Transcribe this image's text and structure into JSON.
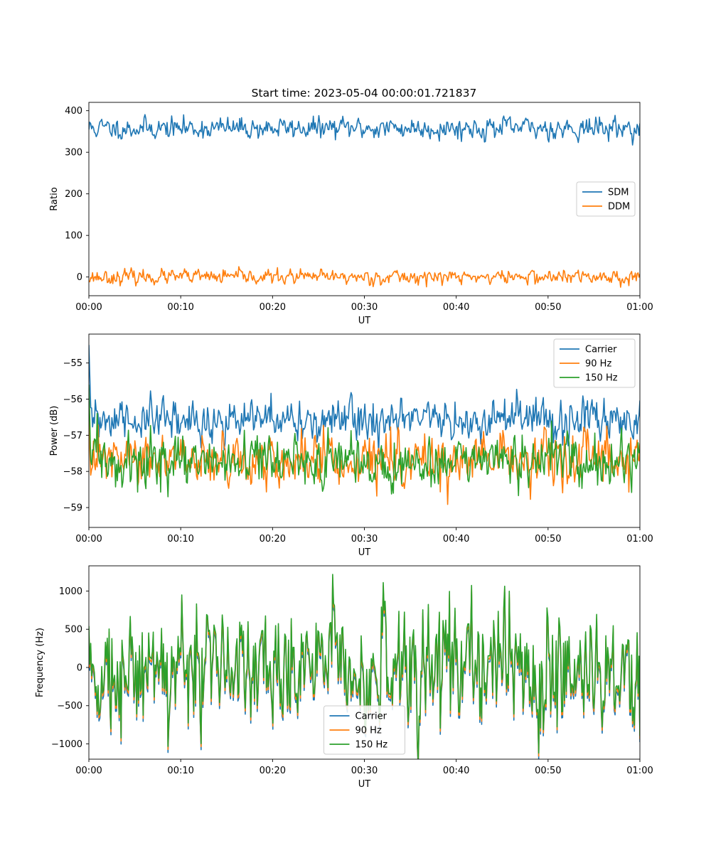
{
  "title": "Start time: 2023-05-04 00:00:01.721837",
  "chart_data": [
    {
      "type": "line",
      "xlabel": "UT",
      "ylabel": "Ratio",
      "x_ticks": [
        "00:00",
        "00:10",
        "00:20",
        "00:30",
        "00:40",
        "00:50",
        "01:00"
      ],
      "xlim": [
        0,
        60
      ],
      "ylim": [
        -45,
        420
      ],
      "y_ticks": [
        0,
        100,
        200,
        300,
        400
      ],
      "legend_position": "center-right",
      "samples": 600,
      "series": [
        {
          "name": "SDM",
          "color": "#1f77b4",
          "mean": 358,
          "spread": 12,
          "seed": 11
        },
        {
          "name": "DDM",
          "color": "#ff7f0e",
          "mean": 0,
          "spread": 8,
          "seed": 23
        }
      ]
    },
    {
      "type": "line",
      "xlabel": "UT",
      "ylabel": "Power (dB)",
      "x_ticks": [
        "00:00",
        "00:10",
        "00:20",
        "00:30",
        "00:40",
        "00:50",
        "01:00"
      ],
      "xlim": [
        0,
        60
      ],
      "ylim": [
        -59.55,
        -54.2
      ],
      "y_ticks": [
        -59,
        -58,
        -57,
        -56,
        -55
      ],
      "legend_position": "top-right",
      "samples": 600,
      "series": [
        {
          "name": "Carrier",
          "color": "#1f77b4",
          "mean": -56.6,
          "spread": 0.28,
          "seed": 31,
          "start": -54.5
        },
        {
          "name": "90 Hz",
          "color": "#ff7f0e",
          "mean": -57.7,
          "spread": 0.33,
          "seed": 47,
          "start": -55.8
        },
        {
          "name": "150 Hz",
          "color": "#2ca02c",
          "mean": -57.75,
          "spread": 0.33,
          "seed": 59,
          "start": -55.6
        }
      ]
    },
    {
      "type": "line",
      "xlabel": "UT",
      "ylabel": "Frequency (Hz)",
      "x_ticks": [
        "00:00",
        "00:10",
        "00:20",
        "00:30",
        "00:40",
        "00:50",
        "01:00"
      ],
      "xlim": [
        0,
        60
      ],
      "ylim": [
        -1200,
        1330
      ],
      "y_ticks": [
        -1000,
        -500,
        0,
        500,
        1000
      ],
      "legend_position": "bottom-center",
      "samples": 600,
      "series": [
        {
          "name": "Carrier",
          "color": "#1f77b4",
          "mean": 0,
          "spread": 380,
          "seed": 73,
          "offset": -40
        },
        {
          "name": "90 Hz",
          "color": "#ff7f0e",
          "mean": 0,
          "spread": 380,
          "seed": 73,
          "offset": 0
        },
        {
          "name": "150 Hz",
          "color": "#2ca02c",
          "mean": 0,
          "spread": 380,
          "seed": 73,
          "offset": 40
        }
      ]
    }
  ]
}
